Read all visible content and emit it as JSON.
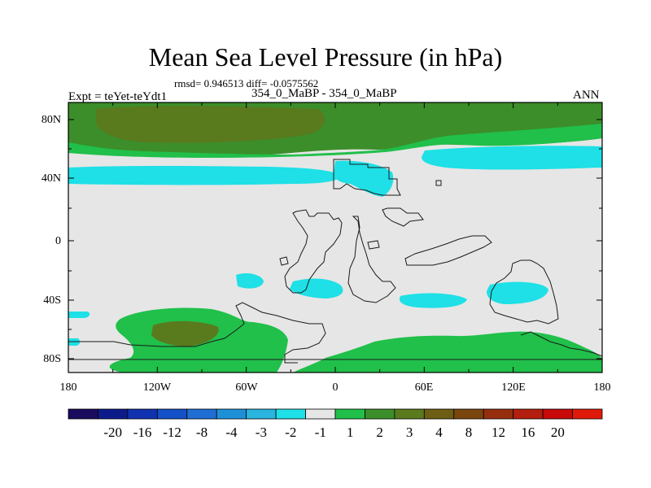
{
  "title": "Mean Sea Level Pressure (in hPa)",
  "stats": "rmsd= 0.946513 diff= -0.0575562",
  "left_label": "Expt = teYet-teYdt1",
  "center_label": "354_0_MaBP - 354_0_MaBP",
  "right_label": "ANN",
  "x_ticks": [
    "180",
    "120W",
    "60W",
    "0",
    "60E",
    "120E",
    "180"
  ],
  "y_ticks": [
    "80N",
    "40N",
    "0",
    "40S",
    "80S"
  ],
  "colorbar": {
    "colors": [
      "#1a0a5e",
      "#0d1a8a",
      "#1032b0",
      "#1450c8",
      "#1e6ed4",
      "#1e90d8",
      "#2ab4e0",
      "#1ee0e6",
      "#e6e6e6",
      "#20c04a",
      "#3c8e2a",
      "#5a7a1e",
      "#6e5e14",
      "#7a460e",
      "#962e0e",
      "#b41e0e",
      "#c80a0a",
      "#e01a0a"
    ],
    "labels": [
      "-20",
      "-16",
      "-12",
      "-8",
      "-4",
      "-3",
      "-2",
      "-1",
      "1",
      "2",
      "3",
      "4",
      "8",
      "12",
      "16",
      "20"
    ]
  },
  "colors": {
    "land": "#e6e6e6",
    "cyan": "#1ee0e6",
    "green": "#20c04a",
    "olive": "#3c8e2a",
    "brown": "#5a7a1e"
  }
}
